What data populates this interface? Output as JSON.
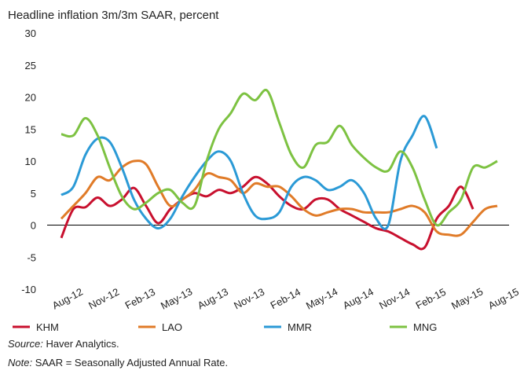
{
  "chart_data": {
    "type": "line",
    "title": "Headline inflation 3m/3m SAAR, percent",
    "categories": [
      "Aug-12",
      null,
      null,
      "Nov-12",
      null,
      null,
      "Feb-13",
      null,
      null,
      "May-13",
      null,
      null,
      "Aug-13",
      null,
      null,
      "Nov-13",
      null,
      null,
      "Feb-14",
      null,
      null,
      "May-14",
      null,
      null,
      "Aug-14",
      null,
      null,
      "Nov-14",
      null,
      null,
      "Feb-15",
      null,
      null,
      "May-15",
      null,
      null,
      "Aug-15"
    ],
    "ylim": [
      -10,
      30
    ],
    "yticks": [
      -10,
      -5,
      0,
      5,
      10,
      15,
      20,
      25,
      30
    ],
    "grid": false,
    "series": [
      {
        "name": "KHM",
        "color": "#c8102e",
        "values": [
          -2,
          2.5,
          2.8,
          4.3,
          3,
          4,
          5.8,
          3,
          0.3,
          2.5,
          4,
          5,
          4.5,
          5.5,
          5,
          6,
          7.5,
          6.5,
          4.5,
          3,
          2.5,
          4,
          4,
          2.5,
          1.5,
          0.5,
          -0.5,
          -1,
          -2,
          -3,
          -3.5,
          1,
          3,
          6,
          2.5,
          null,
          null
        ]
      },
      {
        "name": "LAO",
        "color": "#e07b28",
        "values": [
          1,
          3,
          5,
          7.5,
          7,
          9,
          10,
          9.5,
          6,
          3,
          4,
          5.5,
          8,
          7.5,
          7,
          5,
          6.5,
          6,
          6,
          4.5,
          2.5,
          1.5,
          2,
          2.5,
          2.5,
          2,
          2,
          2,
          2.5,
          3,
          2,
          -1,
          -1.5,
          -1.5,
          0.5,
          2.5,
          3
        ]
      },
      {
        "name": "MMR",
        "color": "#2b9ad6",
        "values": [
          4.7,
          6,
          11,
          13.5,
          13,
          9,
          4,
          1,
          -0.5,
          1,
          4.5,
          7.5,
          10,
          11.5,
          10,
          5,
          1.5,
          1,
          2,
          6,
          7.5,
          7,
          5.5,
          6,
          7,
          5,
          1,
          0,
          10,
          14,
          17,
          12,
          null,
          null,
          null,
          null,
          null
        ]
      },
      {
        "name": "MNG",
        "color": "#7dc242",
        "values": [
          14.2,
          14,
          16.7,
          14,
          9,
          4.5,
          2.5,
          3.5,
          5,
          5.5,
          3.5,
          3,
          10,
          15,
          17.5,
          20.5,
          19.5,
          21,
          16,
          11,
          9,
          12.5,
          13,
          15.5,
          12.5,
          10.5,
          9,
          8.5,
          11.5,
          9,
          4,
          0,
          2,
          4,
          9,
          9,
          10
        ]
      }
    ],
    "source_label": "Source:",
    "source": "Haver Analytics.",
    "note_label": "Note:",
    "note": "SAAR = Seasonally Adjusted Annual Rate."
  }
}
